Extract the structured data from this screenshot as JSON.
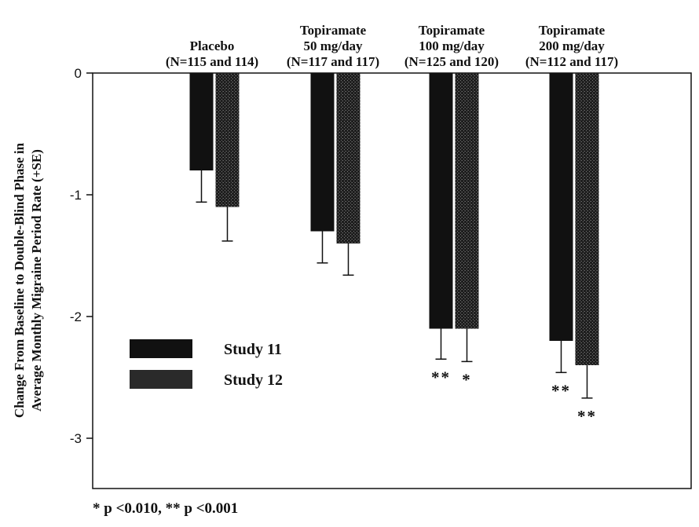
{
  "chart_data": {
    "type": "bar",
    "ylabel": [
      "Change From Baseline to Double-Blind Phase in",
      "Average Monthly Migraine Period Rate (+SE)"
    ],
    "ylim": [
      -3.4,
      0
    ],
    "yticks": [
      0,
      -1,
      -2,
      -3
    ],
    "ytick_labels": [
      "0",
      "-1",
      "-2",
      "-3"
    ],
    "categories": [
      {
        "lines": [
          "Placebo",
          "(N=115 and 114)"
        ]
      },
      {
        "lines": [
          "Topiramate",
          "50 mg/day",
          "(N=117 and 117)"
        ]
      },
      {
        "lines": [
          "Topiramate",
          "100 mg/day",
          "(N=125 and 120)"
        ]
      },
      {
        "lines": [
          "Topiramate",
          "200 mg/day",
          "(N=112 and 117)"
        ]
      }
    ],
    "series": [
      {
        "name": "Study 11",
        "values": [
          -0.8,
          -1.3,
          -2.1,
          -2.2
        ],
        "se": [
          0.26,
          0.26,
          0.25,
          0.26
        ],
        "significance": [
          "",
          "",
          "**",
          "**"
        ],
        "color": "#111111"
      },
      {
        "name": "Study 12",
        "values": [
          -1.1,
          -1.4,
          -2.1,
          -2.4
        ],
        "se": [
          0.28,
          0.26,
          0.27,
          0.27
        ],
        "significance": [
          "",
          "",
          "*",
          "**"
        ],
        "color": "#2a2a2a"
      }
    ],
    "legend_position": "left-lower",
    "footnote": "* p <0.010, ** p <0.001"
  }
}
